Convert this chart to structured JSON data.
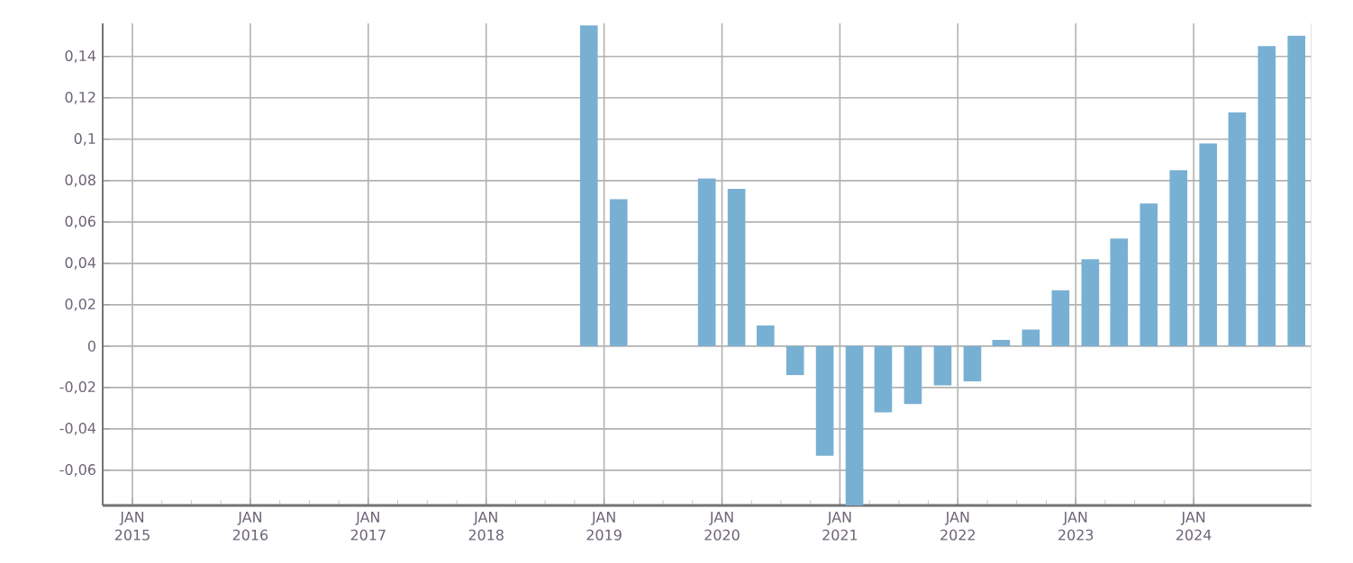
{
  "chart_data": {
    "type": "bar",
    "color": "#78b0d3",
    "grid": true,
    "x": [
      "2018-11-15",
      "2019-02-15",
      "2019-05-15",
      "2019-08-15",
      "2019-11-15",
      "2020-02-15",
      "2020-05-15",
      "2020-08-15",
      "2020-11-15",
      "2021-02-15",
      "2021-05-15",
      "2021-08-15",
      "2021-11-15",
      "2022-02-15",
      "2022-05-15",
      "2022-08-15",
      "2022-11-15",
      "2023-02-15",
      "2023-05-15",
      "2023-08-15",
      "2023-11-15",
      "2024-02-15",
      "2024-05-15",
      "2024-08-15",
      "2024-11-15"
    ],
    "values": [
      0.155,
      0.071,
      null,
      null,
      0.081,
      0.076,
      0.01,
      -0.014,
      -0.053,
      -0.077,
      -0.032,
      -0.028,
      -0.019,
      -0.017,
      0.003,
      0.008,
      0.027,
      0.042,
      0.052,
      0.069,
      0.085,
      0.098,
      0.113,
      0.145,
      0.15
    ],
    "xlim": [
      "2014-10-01",
      "2025-01-01"
    ],
    "xticks": [
      {
        "value": "2015-01-01",
        "label": "JAN 2015"
      },
      {
        "value": "2016-01-01",
        "label": "JAN 2016"
      },
      {
        "value": "2017-01-01",
        "label": "JAN 2017"
      },
      {
        "value": "2018-01-01",
        "label": "JAN 2018"
      },
      {
        "value": "2019-01-01",
        "label": "JAN 2019"
      },
      {
        "value": "2020-01-01",
        "label": "JAN 2020"
      },
      {
        "value": "2021-01-01",
        "label": "JAN 2021"
      },
      {
        "value": "2022-01-01",
        "label": "JAN 2022"
      },
      {
        "value": "2023-01-01",
        "label": "JAN 2023"
      },
      {
        "value": "2024-01-01",
        "label": "JAN 2024"
      }
    ],
    "ylim": [
      -0.077,
      0.156
    ],
    "yticks": [
      {
        "value": -0.06,
        "label": "-0,06"
      },
      {
        "value": -0.04,
        "label": "-0,04"
      },
      {
        "value": -0.02,
        "label": "-0,02"
      },
      {
        "value": 0,
        "label": "0"
      },
      {
        "value": 0.02,
        "label": "0,02"
      },
      {
        "value": 0.04,
        "label": "0,04"
      },
      {
        "value": 0.06,
        "label": "0,06"
      },
      {
        "value": 0.08,
        "label": "0,08"
      },
      {
        "value": 0.1,
        "label": "0,1"
      },
      {
        "value": 0.12,
        "label": "0,12"
      },
      {
        "value": 0.14,
        "label": "0,14"
      }
    ]
  }
}
